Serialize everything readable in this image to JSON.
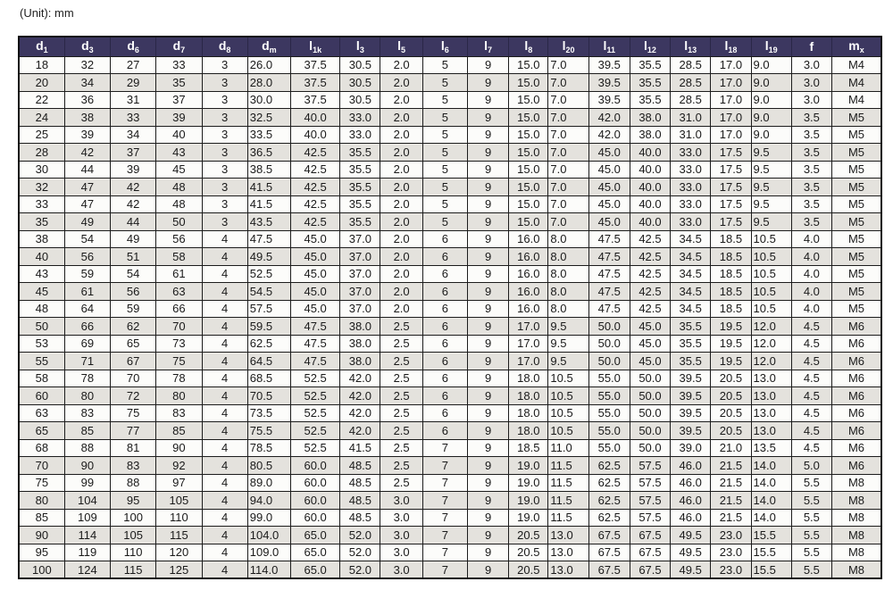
{
  "unit_label": "(Unit): mm",
  "colors": {
    "header_bg": "#3c3760",
    "header_text": "#ffffff",
    "row_odd_bg": "#fcfcfa",
    "row_even_bg": "#e4e2dd",
    "border": "#1c1c1c",
    "text": "#1a1a1a"
  },
  "table": {
    "columns": [
      {
        "base": "d",
        "sub": "1"
      },
      {
        "base": "d",
        "sub": "3"
      },
      {
        "base": "d",
        "sub": "6"
      },
      {
        "base": "d",
        "sub": "7"
      },
      {
        "base": "d",
        "sub": "8"
      },
      {
        "base": "d",
        "sub": "m"
      },
      {
        "base": "l",
        "sub": "1k"
      },
      {
        "base": "l",
        "sub": "3"
      },
      {
        "base": "l",
        "sub": "5"
      },
      {
        "base": "l",
        "sub": "6"
      },
      {
        "base": "l",
        "sub": "7"
      },
      {
        "base": "l",
        "sub": "8"
      },
      {
        "base": "l",
        "sub": "20"
      },
      {
        "base": "l",
        "sub": "11"
      },
      {
        "base": "l",
        "sub": "12"
      },
      {
        "base": "l",
        "sub": "13"
      },
      {
        "base": "l",
        "sub": "18"
      },
      {
        "base": "l",
        "sub": "19"
      },
      {
        "base": "f",
        "sub": ""
      },
      {
        "base": "m",
        "sub": "x"
      }
    ],
    "rows": [
      [
        "18",
        "32",
        "27",
        "33",
        "3",
        "26.0",
        "37.5",
        "30.5",
        "2.0",
        "5",
        "9",
        "15.0",
        "7.0",
        "39.5",
        "35.5",
        "28.5",
        "17.0",
        "9.0",
        "3.0",
        "M4"
      ],
      [
        "20",
        "34",
        "29",
        "35",
        "3",
        "28.0",
        "37.5",
        "30.5",
        "2.0",
        "5",
        "9",
        "15.0",
        "7.0",
        "39.5",
        "35.5",
        "28.5",
        "17.0",
        "9.0",
        "3.0",
        "M4"
      ],
      [
        "22",
        "36",
        "31",
        "37",
        "3",
        "30.0",
        "37.5",
        "30.5",
        "2.0",
        "5",
        "9",
        "15.0",
        "7.0",
        "39.5",
        "35.5",
        "28.5",
        "17.0",
        "9.0",
        "3.0",
        "M4"
      ],
      [
        "24",
        "38",
        "33",
        "39",
        "3",
        "32.5",
        "40.0",
        "33.0",
        "2.0",
        "5",
        "9",
        "15.0",
        "7.0",
        "42.0",
        "38.0",
        "31.0",
        "17.0",
        "9.0",
        "3.5",
        "M5"
      ],
      [
        "25",
        "39",
        "34",
        "40",
        "3",
        "33.5",
        "40.0",
        "33.0",
        "2.0",
        "5",
        "9",
        "15.0",
        "7.0",
        "42.0",
        "38.0",
        "31.0",
        "17.0",
        "9.0",
        "3.5",
        "M5"
      ],
      [
        "28",
        "42",
        "37",
        "43",
        "3",
        "36.5",
        "42.5",
        "35.5",
        "2.0",
        "5",
        "9",
        "15.0",
        "7.0",
        "45.0",
        "40.0",
        "33.0",
        "17.5",
        "9.5",
        "3.5",
        "M5"
      ],
      [
        "30",
        "44",
        "39",
        "45",
        "3",
        "38.5",
        "42.5",
        "35.5",
        "2.0",
        "5",
        "9",
        "15.0",
        "7.0",
        "45.0",
        "40.0",
        "33.0",
        "17.5",
        "9.5",
        "3.5",
        "M5"
      ],
      [
        "32",
        "47",
        "42",
        "48",
        "3",
        "41.5",
        "42.5",
        "35.5",
        "2.0",
        "5",
        "9",
        "15.0",
        "7.0",
        "45.0",
        "40.0",
        "33.0",
        "17.5",
        "9.5",
        "3.5",
        "M5"
      ],
      [
        "33",
        "47",
        "42",
        "48",
        "3",
        "41.5",
        "42.5",
        "35.5",
        "2.0",
        "5",
        "9",
        "15.0",
        "7.0",
        "45.0",
        "40.0",
        "33.0",
        "17.5",
        "9.5",
        "3.5",
        "M5"
      ],
      [
        "35",
        "49",
        "44",
        "50",
        "3",
        "43.5",
        "42.5",
        "35.5",
        "2.0",
        "5",
        "9",
        "15.0",
        "7.0",
        "45.0",
        "40.0",
        "33.0",
        "17.5",
        "9.5",
        "3.5",
        "M5"
      ],
      [
        "38",
        "54",
        "49",
        "56",
        "4",
        "47.5",
        "45.0",
        "37.0",
        "2.0",
        "6",
        "9",
        "16.0",
        "8.0",
        "47.5",
        "42.5",
        "34.5",
        "18.5",
        "10.5",
        "4.0",
        "M5"
      ],
      [
        "40",
        "56",
        "51",
        "58",
        "4",
        "49.5",
        "45.0",
        "37.0",
        "2.0",
        "6",
        "9",
        "16.0",
        "8.0",
        "47.5",
        "42.5",
        "34.5",
        "18.5",
        "10.5",
        "4.0",
        "M5"
      ],
      [
        "43",
        "59",
        "54",
        "61",
        "4",
        "52.5",
        "45.0",
        "37.0",
        "2.0",
        "6",
        "9",
        "16.0",
        "8.0",
        "47.5",
        "42.5",
        "34.5",
        "18.5",
        "10.5",
        "4.0",
        "M5"
      ],
      [
        "45",
        "61",
        "56",
        "63",
        "4",
        "54.5",
        "45.0",
        "37.0",
        "2.0",
        "6",
        "9",
        "16.0",
        "8.0",
        "47.5",
        "42.5",
        "34.5",
        "18.5",
        "10.5",
        "4.0",
        "M5"
      ],
      [
        "48",
        "64",
        "59",
        "66",
        "4",
        "57.5",
        "45.0",
        "37.0",
        "2.0",
        "6",
        "9",
        "16.0",
        "8.0",
        "47.5",
        "42.5",
        "34.5",
        "18.5",
        "10.5",
        "4.0",
        "M5"
      ],
      [
        "50",
        "66",
        "62",
        "70",
        "4",
        "59.5",
        "47.5",
        "38.0",
        "2.5",
        "6",
        "9",
        "17.0",
        "9.5",
        "50.0",
        "45.0",
        "35.5",
        "19.5",
        "12.0",
        "4.5",
        "M6"
      ],
      [
        "53",
        "69",
        "65",
        "73",
        "4",
        "62.5",
        "47.5",
        "38.0",
        "2.5",
        "6",
        "9",
        "17.0",
        "9.5",
        "50.0",
        "45.0",
        "35.5",
        "19.5",
        "12.0",
        "4.5",
        "M6"
      ],
      [
        "55",
        "71",
        "67",
        "75",
        "4",
        "64.5",
        "47.5",
        "38.0",
        "2.5",
        "6",
        "9",
        "17.0",
        "9.5",
        "50.0",
        "45.0",
        "35.5",
        "19.5",
        "12.0",
        "4.5",
        "M6"
      ],
      [
        "58",
        "78",
        "70",
        "78",
        "4",
        "68.5",
        "52.5",
        "42.0",
        "2.5",
        "6",
        "9",
        "18.0",
        "10.5",
        "55.0",
        "50.0",
        "39.5",
        "20.5",
        "13.0",
        "4.5",
        "M6"
      ],
      [
        "60",
        "80",
        "72",
        "80",
        "4",
        "70.5",
        "52.5",
        "42.0",
        "2.5",
        "6",
        "9",
        "18.0",
        "10.5",
        "55.0",
        "50.0",
        "39.5",
        "20.5",
        "13.0",
        "4.5",
        "M6"
      ],
      [
        "63",
        "83",
        "75",
        "83",
        "4",
        "73.5",
        "52.5",
        "42.0",
        "2.5",
        "6",
        "9",
        "18.0",
        "10.5",
        "55.0",
        "50.0",
        "39.5",
        "20.5",
        "13.0",
        "4.5",
        "M6"
      ],
      [
        "65",
        "85",
        "77",
        "85",
        "4",
        "75.5",
        "52.5",
        "42.0",
        "2.5",
        "6",
        "9",
        "18.0",
        "10.5",
        "55.0",
        "50.0",
        "39.5",
        "20.5",
        "13.0",
        "4.5",
        "M6"
      ],
      [
        "68",
        "88",
        "81",
        "90",
        "4",
        "78.5",
        "52.5",
        "41.5",
        "2.5",
        "7",
        "9",
        "18.5",
        "11.0",
        "55.0",
        "50.0",
        "39.0",
        "21.0",
        "13.5",
        "4.5",
        "M6"
      ],
      [
        "70",
        "90",
        "83",
        "92",
        "4",
        "80.5",
        "60.0",
        "48.5",
        "2.5",
        "7",
        "9",
        "19.0",
        "11.5",
        "62.5",
        "57.5",
        "46.0",
        "21.5",
        "14.0",
        "5.0",
        "M6"
      ],
      [
        "75",
        "99",
        "88",
        "97",
        "4",
        "89.0",
        "60.0",
        "48.5",
        "2.5",
        "7",
        "9",
        "19.0",
        "11.5",
        "62.5",
        "57.5",
        "46.0",
        "21.5",
        "14.0",
        "5.5",
        "M8"
      ],
      [
        "80",
        "104",
        "95",
        "105",
        "4",
        "94.0",
        "60.0",
        "48.5",
        "3.0",
        "7",
        "9",
        "19.0",
        "11.5",
        "62.5",
        "57.5",
        "46.0",
        "21.5",
        "14.0",
        "5.5",
        "M8"
      ],
      [
        "85",
        "109",
        "100",
        "110",
        "4",
        "99.0",
        "60.0",
        "48.5",
        "3.0",
        "7",
        "9",
        "19.0",
        "11.5",
        "62.5",
        "57.5",
        "46.0",
        "21.5",
        "14.0",
        "5.5",
        "M8"
      ],
      [
        "90",
        "114",
        "105",
        "115",
        "4",
        "104.0",
        "65.0",
        "52.0",
        "3.0",
        "7",
        "9",
        "20.5",
        "13.0",
        "67.5",
        "67.5",
        "49.5",
        "23.0",
        "15.5",
        "5.5",
        "M8"
      ],
      [
        "95",
        "119",
        "110",
        "120",
        "4",
        "109.0",
        "65.0",
        "52.0",
        "3.0",
        "7",
        "9",
        "20.5",
        "13.0",
        "67.5",
        "67.5",
        "49.5",
        "23.0",
        "15.5",
        "5.5",
        "M8"
      ],
      [
        "100",
        "124",
        "115",
        "125",
        "4",
        "114.0",
        "65.0",
        "52.0",
        "3.0",
        "7",
        "9",
        "20.5",
        "13.0",
        "67.5",
        "67.5",
        "49.5",
        "23.0",
        "15.5",
        "5.5",
        "M8"
      ]
    ]
  }
}
